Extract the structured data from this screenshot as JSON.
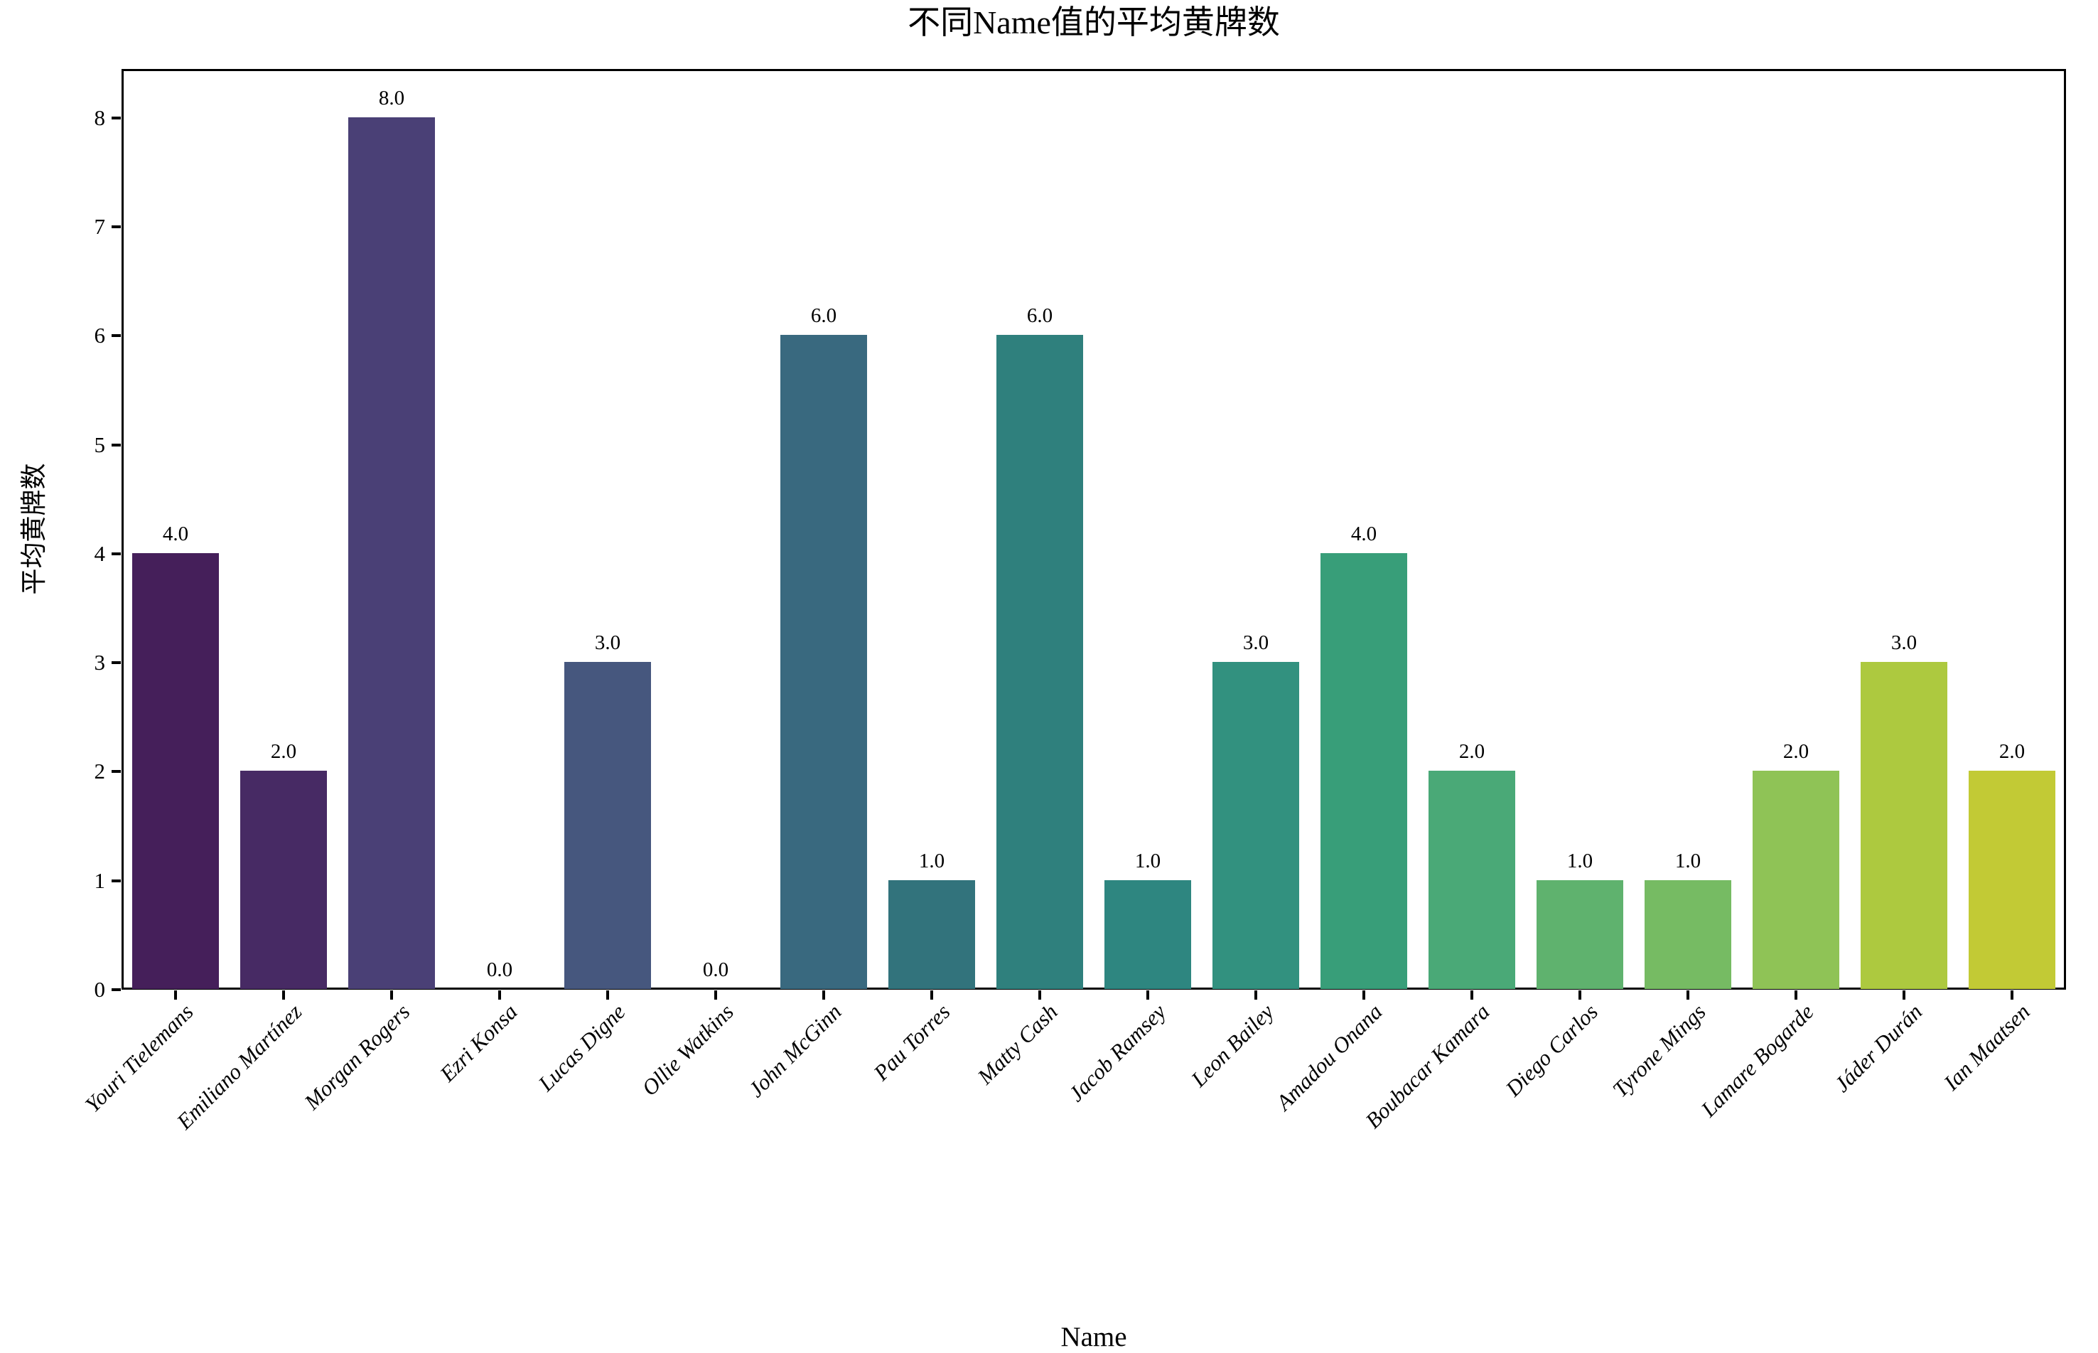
{
  "chart_data": {
    "type": "bar",
    "title": "不同Name值的平均黄牌数",
    "xlabel": "Name",
    "ylabel": "平均黄牌数",
    "categories": [
      "Youri Tielemans",
      "Emiliano Martínez",
      "Morgan Rogers",
      "Ezri Konsa",
      "Lucas Digne",
      "Ollie Watkins",
      "John McGinn",
      "Pau Torres",
      "Matty Cash",
      "Jacob Ramsey",
      "Leon Bailey",
      "Amadou Onana",
      "Boubacar Kamara",
      "Diego Carlos",
      "Tyrone Mings",
      "Lamare Bogarde",
      "Jáder Durán",
      "Ian Maatsen"
    ],
    "values": [
      4.0,
      2.0,
      8.0,
      0.0,
      3.0,
      0.0,
      6.0,
      1.0,
      6.0,
      1.0,
      3.0,
      4.0,
      2.0,
      1.0,
      1.0,
      2.0,
      3.0,
      2.0
    ],
    "value_labels": [
      "4.0",
      "2.0",
      "8.0",
      "0.0",
      "3.0",
      "0.0",
      "6.0",
      "1.0",
      "6.0",
      "1.0",
      "3.0",
      "4.0",
      "2.0",
      "1.0",
      "1.0",
      "2.0",
      "3.0",
      "2.0"
    ],
    "bar_colors": [
      "#451f5a",
      "#472a64",
      "#4a4076",
      "#4a4b7c",
      "#46577e",
      "#3f607f",
      "#39697f",
      "#32737c",
      "#2f807d",
      "#2e8680",
      "#32917f",
      "#389e79",
      "#4aa977",
      "#5fb26e",
      "#76bb63",
      "#8fc356",
      "#adc93f",
      "#c2ca35"
    ],
    "yticks": [
      "0",
      "1",
      "2",
      "3",
      "4",
      "5",
      "6",
      "7",
      "8"
    ],
    "ylim": [
      0,
      8.45
    ],
    "grid": false,
    "legend_position": "none",
    "axis_color": "#000000",
    "background_color": "#ffffff"
  }
}
